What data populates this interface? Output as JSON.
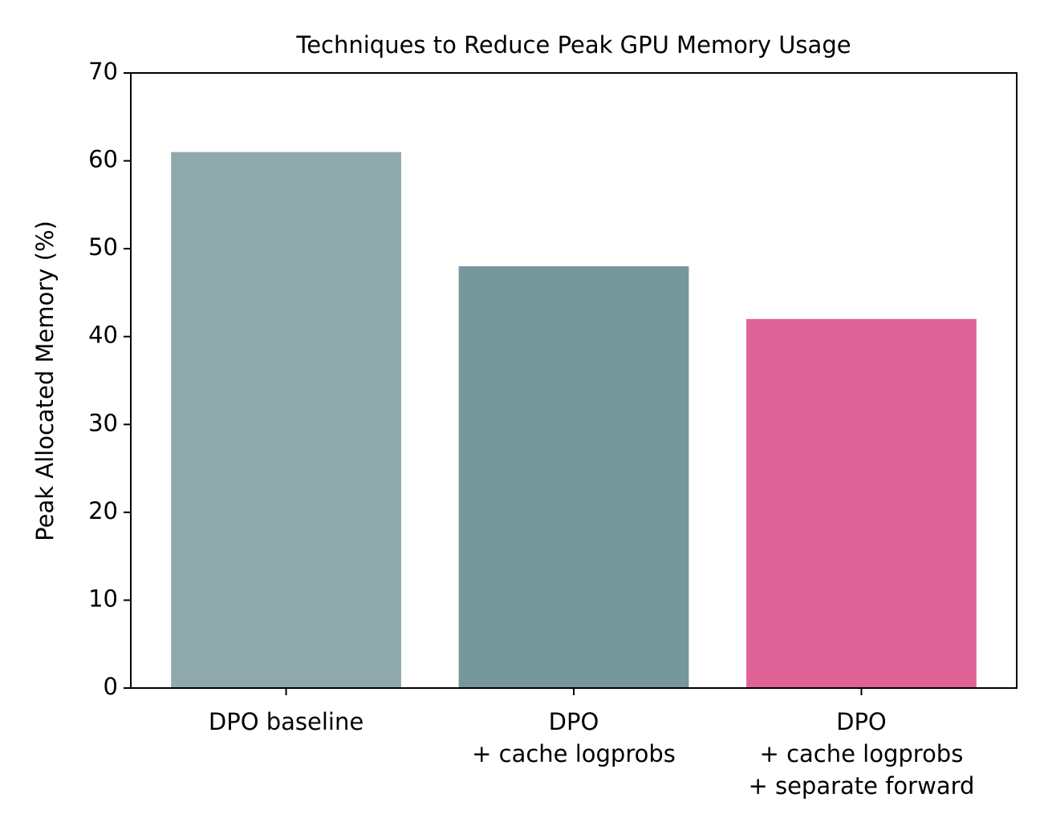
{
  "chart_data": {
    "type": "bar",
    "title": "Techniques to Reduce Peak GPU Memory Usage",
    "ylabel": "Peak Allocated Memory (%)",
    "categories": [
      "DPO baseline",
      "DPO\n+ cache logprobs",
      "DPO\n+ cache logprobs\n+ separate forward"
    ],
    "values": [
      61,
      48,
      42
    ],
    "colors": [
      "#8fa8ac",
      "#76979b",
      "#e06398"
    ],
    "ylim": [
      0,
      70
    ],
    "yticks": [
      0,
      10,
      20,
      30,
      40,
      50,
      60,
      70
    ],
    "grid": false
  }
}
